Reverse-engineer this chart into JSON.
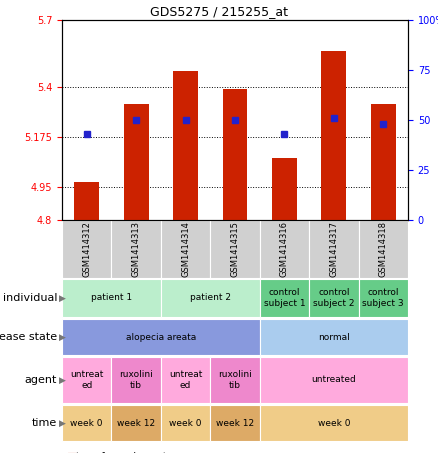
{
  "title": "GDS5275 / 215255_at",
  "samples": [
    "GSM1414312",
    "GSM1414313",
    "GSM1414314",
    "GSM1414315",
    "GSM1414316",
    "GSM1414317",
    "GSM1414318"
  ],
  "transformed_count": [
    4.97,
    5.32,
    5.47,
    5.39,
    5.08,
    5.56,
    5.32
  ],
  "percentile_rank": [
    43,
    50,
    50,
    50,
    43,
    51,
    48
  ],
  "ylim_left": [
    4.8,
    5.7
  ],
  "ylim_right": [
    0,
    100
  ],
  "yticks_left": [
    4.8,
    4.95,
    5.175,
    5.4,
    5.7
  ],
  "yticks_right": [
    0,
    25,
    50,
    75,
    100
  ],
  "ytick_labels_left": [
    "4.8",
    "4.95",
    "5.175",
    "5.4",
    "5.7"
  ],
  "ytick_labels_right": [
    "0",
    "25",
    "50",
    "75",
    "100%"
  ],
  "hlines": [
    4.95,
    5.175,
    5.4
  ],
  "bar_color": "#cc2200",
  "dot_color": "#2222cc",
  "plot_bg": "#ffffff",
  "individual_data": [
    {
      "label": "patient 1",
      "cols": [
        0,
        1
      ],
      "color": "#bbeecc"
    },
    {
      "label": "patient 2",
      "cols": [
        2,
        3
      ],
      "color": "#bbeecc"
    },
    {
      "label": "control\nsubject 1",
      "cols": [
        4,
        4
      ],
      "color": "#66cc88"
    },
    {
      "label": "control\nsubject 2",
      "cols": [
        5,
        5
      ],
      "color": "#66cc88"
    },
    {
      "label": "control\nsubject 3",
      "cols": [
        6,
        6
      ],
      "color": "#66cc88"
    }
  ],
  "disease_data": [
    {
      "label": "alopecia areata",
      "cols": [
        0,
        3
      ],
      "color": "#8899dd"
    },
    {
      "label": "normal",
      "cols": [
        4,
        6
      ],
      "color": "#aaccee"
    }
  ],
  "agent_data": [
    {
      "label": "untreat\ned",
      "cols": [
        0,
        0
      ],
      "color": "#ffaadd"
    },
    {
      "label": "ruxolini\ntib",
      "cols": [
        1,
        1
      ],
      "color": "#ee88cc"
    },
    {
      "label": "untreat\ned",
      "cols": [
        2,
        2
      ],
      "color": "#ffaadd"
    },
    {
      "label": "ruxolini\ntib",
      "cols": [
        3,
        3
      ],
      "color": "#ee88cc"
    },
    {
      "label": "untreated",
      "cols": [
        4,
        6
      ],
      "color": "#ffaadd"
    }
  ],
  "time_data": [
    {
      "label": "week 0",
      "cols": [
        0,
        0
      ],
      "color": "#f0cc88"
    },
    {
      "label": "week 12",
      "cols": [
        1,
        1
      ],
      "color": "#ddaa66"
    },
    {
      "label": "week 0",
      "cols": [
        2,
        2
      ],
      "color": "#f0cc88"
    },
    {
      "label": "week 12",
      "cols": [
        3,
        3
      ],
      "color": "#ddaa66"
    },
    {
      "label": "week 0",
      "cols": [
        4,
        6
      ],
      "color": "#f0cc88"
    }
  ],
  "row_labels": [
    "individual",
    "disease state",
    "agent",
    "time"
  ],
  "tick_fontsize": 7,
  "sample_fontsize": 6,
  "row_label_fontsize": 8,
  "cell_fontsize": 6.5,
  "legend_fontsize": 7
}
